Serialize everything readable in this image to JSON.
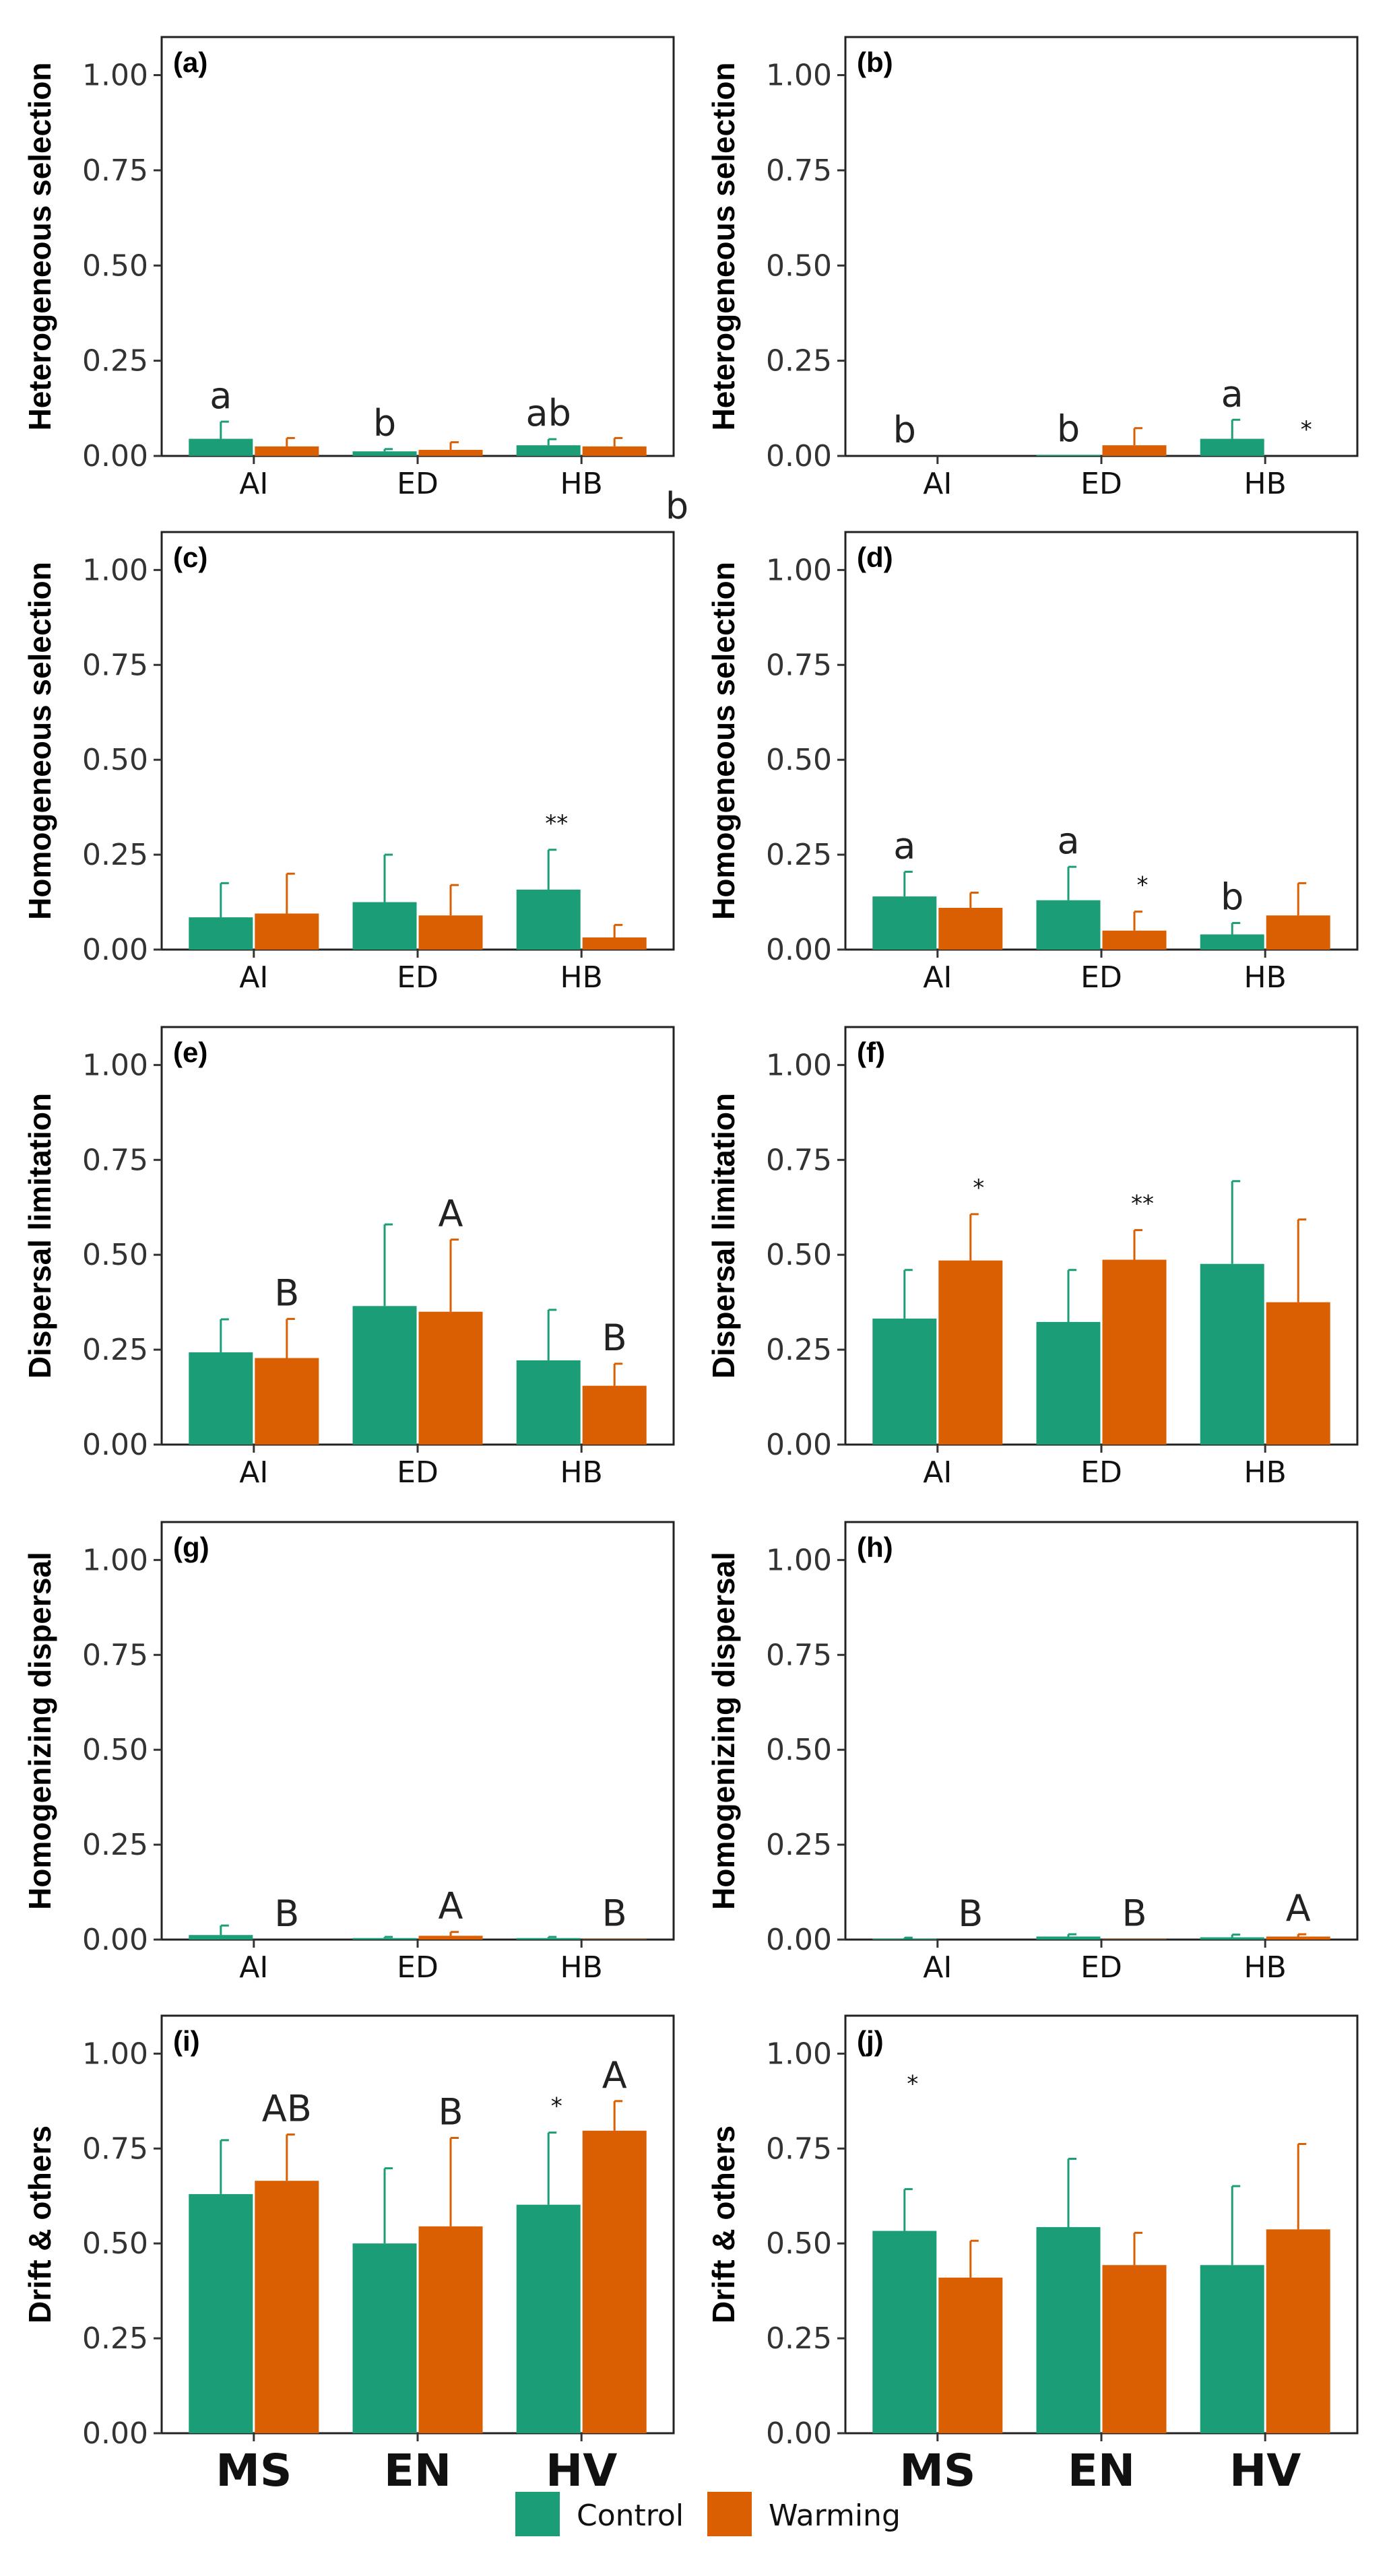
{
  "colors": {
    "control": "#1b9e77",
    "warming": "#d95f02"
  },
  "legend": {
    "control": "Control",
    "warming": "Warming"
  },
  "stray_label": "b",
  "chart_data": [
    {
      "panel": "(a)",
      "type": "bar",
      "ylabel": "Heterogeneous selection",
      "ylim": [
        0,
        1.1
      ],
      "yticks": [
        "0.00",
        "0.25",
        "0.50",
        "0.75",
        "1.00"
      ],
      "categories": [
        "AI",
        "ED",
        "HB"
      ],
      "series": [
        {
          "name": "Control",
          "values": [
            0.045,
            0.012,
            0.028
          ],
          "errors": [
            0.045,
            0.006,
            0.016
          ]
        },
        {
          "name": "Warming",
          "values": [
            0.025,
            0.016,
            0.025
          ],
          "errors": [
            0.022,
            0.02,
            0.022
          ]
        }
      ],
      "annotations": [
        {
          "text": "a",
          "cat": 0,
          "series": 0
        },
        {
          "text": "b",
          "cat": 1,
          "series": 0
        },
        {
          "text": "ab",
          "cat": 2,
          "series": 0
        }
      ]
    },
    {
      "panel": "(b)",
      "type": "bar",
      "ylabel": "Heterogeneous selection",
      "ylim": [
        0,
        1.1
      ],
      "yticks": [
        "0.00",
        "0.25",
        "0.50",
        "0.75",
        "1.00"
      ],
      "categories": [
        "AI",
        "ED",
        "HB"
      ],
      "series": [
        {
          "name": "Control",
          "values": [
            0,
            0.003,
            0.045
          ],
          "errors": [
            0,
            0,
            0.05
          ]
        },
        {
          "name": "Warming",
          "values": [
            0,
            0.028,
            0
          ],
          "errors": [
            0,
            0.045,
            0
          ]
        }
      ],
      "annotations": [
        {
          "text": "b",
          "cat": 0,
          "series": 0
        },
        {
          "text": "b",
          "cat": 1,
          "series": 0
        },
        {
          "text": "a",
          "cat": 2,
          "series": 0
        },
        {
          "text": "*",
          "cat": 2,
          "series": 1,
          "star": true
        }
      ]
    },
    {
      "panel": "(c)",
      "type": "bar",
      "ylabel": "Homogeneous selection",
      "ylim": [
        0,
        1.1
      ],
      "yticks": [
        "0.00",
        "0.25",
        "0.50",
        "0.75",
        "1.00"
      ],
      "categories": [
        "AI",
        "ED",
        "HB"
      ],
      "series": [
        {
          "name": "Control",
          "values": [
            0.085,
            0.125,
            0.158
          ],
          "errors": [
            0.09,
            0.125,
            0.105
          ]
        },
        {
          "name": "Warming",
          "values": [
            0.095,
            0.09,
            0.032
          ],
          "errors": [
            0.105,
            0.08,
            0.033
          ]
        }
      ],
      "annotations": [
        {
          "text": "**",
          "cat": 2,
          "series": 0,
          "star": true
        }
      ]
    },
    {
      "panel": "(d)",
      "type": "bar",
      "ylabel": "Homogeneous selection",
      "ylim": [
        0,
        1.1
      ],
      "yticks": [
        "0.00",
        "0.25",
        "0.50",
        "0.75",
        "1.00"
      ],
      "categories": [
        "AI",
        "ED",
        "HB"
      ],
      "series": [
        {
          "name": "Control",
          "values": [
            0.14,
            0.13,
            0.04
          ],
          "errors": [
            0.065,
            0.088,
            0.03
          ]
        },
        {
          "name": "Warming",
          "values": [
            0.11,
            0.05,
            0.09
          ],
          "errors": [
            0.04,
            0.05,
            0.085
          ]
        }
      ],
      "annotations": [
        {
          "text": "a",
          "cat": 0,
          "series": 0
        },
        {
          "text": "a",
          "cat": 1,
          "series": 0
        },
        {
          "text": "*",
          "cat": 1,
          "series": 1,
          "star": true
        },
        {
          "text": "b",
          "cat": 2,
          "series": 0
        }
      ]
    },
    {
      "panel": "(e)",
      "type": "bar",
      "ylabel": "Dispersal limitation",
      "ylim": [
        0,
        1.1
      ],
      "yticks": [
        "0.00",
        "0.25",
        "0.50",
        "0.75",
        "1.00"
      ],
      "categories": [
        "AI",
        "ED",
        "HB"
      ],
      "series": [
        {
          "name": "Control",
          "values": [
            0.243,
            0.365,
            0.222
          ],
          "errors": [
            0.087,
            0.215,
            0.133
          ]
        },
        {
          "name": "Warming",
          "values": [
            0.228,
            0.35,
            0.155
          ],
          "errors": [
            0.103,
            0.19,
            0.058
          ]
        }
      ],
      "annotations": [
        {
          "text": "B",
          "cat": 0,
          "series": 1
        },
        {
          "text": "A",
          "cat": 1,
          "series": 1
        },
        {
          "text": "B",
          "cat": 2,
          "series": 1
        }
      ]
    },
    {
      "panel": "(f)",
      "type": "bar",
      "ylabel": "Dispersal limitation",
      "ylim": [
        0,
        1.1
      ],
      "yticks": [
        "0.00",
        "0.25",
        "0.50",
        "0.75",
        "1.00"
      ],
      "categories": [
        "AI",
        "ED",
        "HB"
      ],
      "series": [
        {
          "name": "Control",
          "values": [
            0.332,
            0.323,
            0.476
          ],
          "errors": [
            0.128,
            0.137,
            0.218
          ]
        },
        {
          "name": "Warming",
          "values": [
            0.485,
            0.487,
            0.375
          ],
          "errors": [
            0.122,
            0.078,
            0.218
          ]
        }
      ],
      "annotations": [
        {
          "text": "*",
          "cat": 0,
          "series": 1,
          "star": true
        },
        {
          "text": "**",
          "cat": 1,
          "series": 1,
          "star": true
        }
      ]
    },
    {
      "panel": "(g)",
      "type": "bar",
      "ylabel": "Homogenizing dispersal",
      "ylim": [
        0,
        1.1
      ],
      "yticks": [
        "0.00",
        "0.25",
        "0.50",
        "0.75",
        "1.00"
      ],
      "categories": [
        "AI",
        "ED",
        "HB"
      ],
      "series": [
        {
          "name": "Control",
          "values": [
            0.012,
            0.004,
            0.004
          ],
          "errors": [
            0.025,
            0.003,
            0.003
          ]
        },
        {
          "name": "Warming",
          "values": [
            0,
            0.01,
            0.001
          ],
          "errors": [
            0,
            0.01,
            0
          ]
        }
      ],
      "annotations": [
        {
          "text": "B",
          "cat": 0,
          "series": 1
        },
        {
          "text": "A",
          "cat": 1,
          "series": 1
        },
        {
          "text": "B",
          "cat": 2,
          "series": 1
        }
      ]
    },
    {
      "panel": "(h)",
      "type": "bar",
      "ylabel": "Homogenizing dispersal",
      "ylim": [
        0,
        1.1
      ],
      "yticks": [
        "0.00",
        "0.25",
        "0.50",
        "0.75",
        "1.00"
      ],
      "categories": [
        "AI",
        "ED",
        "HB"
      ],
      "series": [
        {
          "name": "Control",
          "values": [
            0.002,
            0.008,
            0.006
          ],
          "errors": [
            0.003,
            0.006,
            0.007
          ]
        },
        {
          "name": "Warming",
          "values": [
            0,
            0.001,
            0.008
          ],
          "errors": [
            0,
            0,
            0.006
          ]
        }
      ],
      "annotations": [
        {
          "text": "B",
          "cat": 0,
          "series": 1
        },
        {
          "text": "B",
          "cat": 1,
          "series": 1
        },
        {
          "text": "A",
          "cat": 2,
          "series": 1
        }
      ]
    },
    {
      "panel": "(i)",
      "type": "bar",
      "ylabel": "Drift & others",
      "ylim": [
        0,
        1.1
      ],
      "big_x": true,
      "yticks": [
        "0.00",
        "0.25",
        "0.50",
        "0.75",
        "1.00"
      ],
      "categories": [
        "MS",
        "EN",
        "HV"
      ],
      "series": [
        {
          "name": "Control",
          "values": [
            0.63,
            0.5,
            0.602
          ],
          "errors": [
            0.142,
            0.198,
            0.19
          ]
        },
        {
          "name": "Warming",
          "values": [
            0.665,
            0.545,
            0.797
          ],
          "errors": [
            0.122,
            0.233,
            0.078
          ]
        }
      ],
      "annotations": [
        {
          "text": "AB",
          "cat": 0,
          "series": 1
        },
        {
          "text": "B",
          "cat": 1,
          "series": 1
        },
        {
          "text": "*",
          "cat": 2,
          "series": 0,
          "star": true
        },
        {
          "text": "A",
          "cat": 2,
          "series": 1
        }
      ]
    },
    {
      "panel": "(j)",
      "type": "bar",
      "ylabel": "Drift & others",
      "ylim": [
        0,
        1.1
      ],
      "big_x": true,
      "yticks": [
        "0.00",
        "0.25",
        "0.50",
        "0.75",
        "1.00"
      ],
      "categories": [
        "MS",
        "EN",
        "HV"
      ],
      "series": [
        {
          "name": "Control",
          "values": [
            0.533,
            0.543,
            0.443
          ],
          "errors": [
            0.11,
            0.18,
            0.208
          ]
        },
        {
          "name": "Warming",
          "values": [
            0.41,
            0.443,
            0.537
          ],
          "errors": [
            0.097,
            0.085,
            0.225
          ]
        }
      ],
      "annotations": [
        {
          "text": "*",
          "cat": 0,
          "series": 0,
          "star": true,
          "high": true
        }
      ]
    }
  ]
}
